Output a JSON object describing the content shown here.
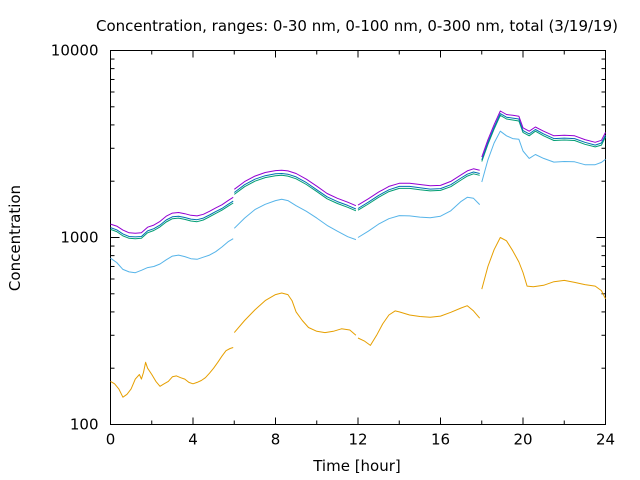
{
  "chart_data": {
    "type": "line",
    "title": "Concentration, ranges: 0-30 nm, 0-100 nm, 0-300 nm, total (3/19/19)",
    "xlabel": "Time [hour]",
    "ylabel": "Concentration",
    "xlim": [
      0,
      24
    ],
    "ylim": [
      100,
      10000
    ],
    "yscale": "log",
    "x_ticks": [
      "0",
      "4",
      "8",
      "12",
      "16",
      "20",
      "24"
    ],
    "x_tick_values": [
      0,
      4,
      8,
      12,
      16,
      20,
      24
    ],
    "y_ticks": [
      "100",
      "1000",
      "10000"
    ],
    "y_tick_values": [
      100,
      1000,
      10000
    ],
    "grid": false,
    "legend": "none",
    "series": [
      {
        "color": "#e69f00",
        "segments": [
          {
            "x": [
              0,
              0.2,
              0.4,
              0.6,
              0.8,
              1,
              1.2,
              1.4,
              1.5,
              1.6,
              1.7,
              1.8,
              2,
              2.2,
              2.4,
              2.6,
              2.8,
              3,
              3.2,
              3.4,
              3.6,
              3.8,
              4,
              4.2,
              4.4,
              4.6,
              4.8,
              5,
              5.2,
              5.4,
              5.6,
              5.8,
              5.95
            ],
            "y": [
              170,
              165,
              155,
              140,
              145,
              155,
              175,
              185,
              175,
              190,
              215,
              200,
              185,
              170,
              160,
              165,
              170,
              180,
              182,
              178,
              175,
              168,
              165,
              168,
              172,
              178,
              188,
              200,
              215,
              232,
              248,
              255,
              258
            ]
          },
          {
            "x": [
              6,
              6.5,
              7,
              7.5,
              8,
              8.3,
              8.6,
              8.8,
              9,
              9.3,
              9.6,
              10,
              10.4,
              10.8,
              11.2,
              11.6,
              11.9
            ],
            "y": [
              310,
              360,
              410,
              460,
              495,
              505,
              495,
              460,
              400,
              360,
              330,
              315,
              310,
              315,
              325,
              320,
              300
            ]
          },
          {
            "x": [
              12,
              12.3,
              12.6,
              12.9,
              13.2,
              13.5,
              13.8,
              14,
              14.5,
              15,
              15.5,
              16,
              16.5,
              17,
              17.3,
              17.6,
              17.9
            ],
            "y": [
              290,
              280,
              265,
              300,
              345,
              385,
              405,
              400,
              385,
              378,
              375,
              380,
              398,
              420,
              432,
              405,
              370
            ]
          },
          {
            "x": [
              18,
              18.3,
              18.6,
              18.9,
              19.2,
              19.5,
              19.8,
              20,
              20.2,
              20.5,
              21,
              21.5,
              22,
              22.5,
              23,
              23.5,
              23.8,
              24
            ],
            "y": [
              530,
              700,
              860,
              1000,
              960,
              850,
              740,
              650,
              550,
              545,
              555,
              580,
              590,
              575,
              560,
              550,
              520,
              470
            ]
          }
        ]
      },
      {
        "color": "#56b4e9",
        "segments": [
          {
            "x": [
              0,
              0.3,
              0.6,
              0.9,
              1.2,
              1.5,
              1.8,
              2.1,
              2.4,
              2.7,
              3,
              3.3,
              3.6,
              3.9,
              4.2,
              4.5,
              4.8,
              5.1,
              5.4,
              5.7,
              5.95
            ],
            "y": [
              775,
              735,
              675,
              655,
              648,
              668,
              690,
              700,
              722,
              760,
              795,
              805,
              790,
              770,
              765,
              785,
              805,
              840,
              890,
              950,
              985
            ]
          },
          {
            "x": [
              6,
              6.5,
              7,
              7.5,
              8,
              8.3,
              8.6,
              9,
              9.5,
              10,
              10.5,
              11,
              11.5,
              11.9
            ],
            "y": [
              1120,
              1270,
              1410,
              1505,
              1575,
              1600,
              1575,
              1480,
              1380,
              1270,
              1160,
              1080,
              1010,
              975
            ]
          },
          {
            "x": [
              12,
              12.5,
              13,
              13.5,
              14,
              14.5,
              15,
              15.5,
              16,
              16.5,
              17,
              17.3,
              17.6,
              17.9
            ],
            "y": [
              1000,
              1080,
              1180,
              1260,
              1310,
              1305,
              1285,
              1275,
              1300,
              1390,
              1560,
              1640,
              1620,
              1500
            ]
          },
          {
            "x": [
              18,
              18.3,
              18.6,
              18.9,
              19.2,
              19.5,
              19.8,
              20,
              20.3,
              20.6,
              21,
              21.5,
              22,
              22.5,
              23,
              23.5,
              23.8,
              24
            ],
            "y": [
              1980,
              2600,
              3200,
              3700,
              3500,
              3380,
              3350,
              2900,
              2650,
              2780,
              2650,
              2530,
              2550,
              2540,
              2450,
              2450,
              2520,
              2620
            ]
          }
        ]
      },
      {
        "color": "#009e73",
        "segments": [
          {
            "x": [
              0,
              0.3,
              0.6,
              0.9,
              1.2,
              1.5,
              1.8,
              2.1,
              2.4,
              2.7,
              3,
              3.3,
              3.6,
              3.9,
              4.2,
              4.5,
              4.8,
              5.1,
              5.4,
              5.7,
              5.95
            ],
            "y": [
              1105,
              1075,
              1020,
              990,
              985,
              990,
              1060,
              1090,
              1140,
              1210,
              1260,
              1270,
              1250,
              1225,
              1215,
              1240,
              1290,
              1345,
              1400,
              1470,
              1530
            ]
          },
          {
            "x": [
              6,
              6.5,
              7,
              7.5,
              8,
              8.3,
              8.6,
              9,
              9.5,
              10,
              10.5,
              11,
              11.5,
              11.9
            ],
            "y": [
              1700,
              1870,
              2000,
              2090,
              2140,
              2150,
              2130,
              2060,
              1920,
              1760,
              1610,
              1520,
              1450,
              1390
            ]
          },
          {
            "x": [
              12,
              12.5,
              13,
              13.5,
              14,
              14.5,
              15,
              15.5,
              16,
              16.5,
              17,
              17.3,
              17.6,
              17.9
            ],
            "y": [
              1400,
              1510,
              1640,
              1760,
              1830,
              1830,
              1800,
              1775,
              1785,
              1870,
              2030,
              2130,
              2190,
              2150
            ]
          },
          {
            "x": [
              18,
              18.3,
              18.6,
              18.9,
              19.2,
              19.5,
              19.8,
              20,
              20.3,
              20.6,
              21,
              21.5,
              22,
              22.5,
              23,
              23.5,
              23.8,
              24
            ],
            "y": [
              2550,
              3150,
              3800,
              4500,
              4300,
              4250,
              4200,
              3650,
              3500,
              3700,
              3500,
              3300,
              3320,
              3300,
              3150,
              3050,
              3120,
              3450
            ]
          }
        ]
      },
      {
        "color": "#0072b2",
        "segments": [
          {
            "x": [
              0,
              0.3,
              0.6,
              0.9,
              1.2,
              1.5,
              1.8,
              2.1,
              2.4,
              2.7,
              3,
              3.3,
              3.6,
              3.9,
              4.2,
              4.5,
              4.8,
              5.1,
              5.4,
              5.7,
              5.95
            ],
            "y": [
              1130,
              1100,
              1045,
              1012,
              1008,
              1012,
              1085,
              1115,
              1165,
              1240,
              1290,
              1300,
              1280,
              1255,
              1245,
              1270,
              1320,
              1375,
              1430,
              1505,
              1565
            ]
          },
          {
            "x": [
              6,
              6.5,
              7,
              7.5,
              8,
              8.3,
              8.6,
              9,
              9.5,
              10,
              10.5,
              11,
              11.5,
              11.9
            ],
            "y": [
              1740,
              1915,
              2050,
              2140,
              2190,
              2200,
              2180,
              2110,
              1965,
              1800,
              1650,
              1555,
              1485,
              1420
            ]
          },
          {
            "x": [
              12,
              12.5,
              13,
              13.5,
              14,
              14.5,
              15,
              15.5,
              16,
              16.5,
              17,
              17.3,
              17.6,
              17.9
            ],
            "y": [
              1430,
              1545,
              1680,
              1800,
              1875,
              1875,
              1845,
              1815,
              1825,
              1915,
              2080,
              2180,
              2240,
              2200
            ]
          },
          {
            "x": [
              18,
              18.3,
              18.6,
              18.9,
              19.2,
              19.5,
              19.8,
              20,
              20.3,
              20.6,
              21,
              21.5,
              22,
              22.5,
              23,
              23.5,
              23.8,
              24
            ],
            "y": [
              2600,
              3220,
              3880,
              4600,
              4400,
              4350,
              4300,
              3730,
              3580,
              3780,
              3580,
              3380,
              3400,
              3380,
              3230,
              3120,
              3200,
              3530
            ]
          }
        ]
      },
      {
        "color": "#9400d3",
        "segments": [
          {
            "x": [
              0,
              0.3,
              0.6,
              0.9,
              1.2,
              1.5,
              1.8,
              2.1,
              2.4,
              2.7,
              3,
              3.3,
              3.6,
              3.9,
              4.2,
              4.5,
              4.8,
              5.1,
              5.4,
              5.7,
              5.95
            ],
            "y": [
              1180,
              1150,
              1095,
              1060,
              1055,
              1060,
              1135,
              1165,
              1220,
              1300,
              1350,
              1360,
              1340,
              1315,
              1305,
              1330,
              1380,
              1440,
              1495,
              1575,
              1640
            ]
          },
          {
            "x": [
              6,
              6.5,
              7,
              7.5,
              8,
              8.3,
              8.6,
              9,
              9.5,
              10,
              10.5,
              11,
              11.5,
              11.9
            ],
            "y": [
              1810,
              1990,
              2130,
              2225,
              2280,
              2290,
              2270,
              2200,
              2050,
              1880,
              1720,
              1620,
              1545,
              1480
            ]
          },
          {
            "x": [
              12,
              12.5,
              13,
              13.5,
              14,
              14.5,
              15,
              15.5,
              16,
              16.5,
              17,
              17.3,
              17.6,
              17.9
            ],
            "y": [
              1490,
              1610,
              1750,
              1875,
              1950,
              1950,
              1920,
              1890,
              1900,
              1995,
              2165,
              2270,
              2330,
              2290
            ]
          },
          {
            "x": [
              18,
              18.3,
              18.6,
              18.9,
              19.2,
              19.5,
              19.8,
              20,
              20.3,
              20.6,
              21,
              21.5,
              22,
              22.5,
              23,
              23.5,
              23.8,
              24
            ],
            "y": [
              2690,
              3330,
              4010,
              4750,
              4550,
              4500,
              4450,
              3860,
              3700,
              3900,
              3700,
              3500,
              3520,
              3500,
              3340,
              3230,
              3310,
              3650
            ]
          }
        ]
      }
    ]
  }
}
